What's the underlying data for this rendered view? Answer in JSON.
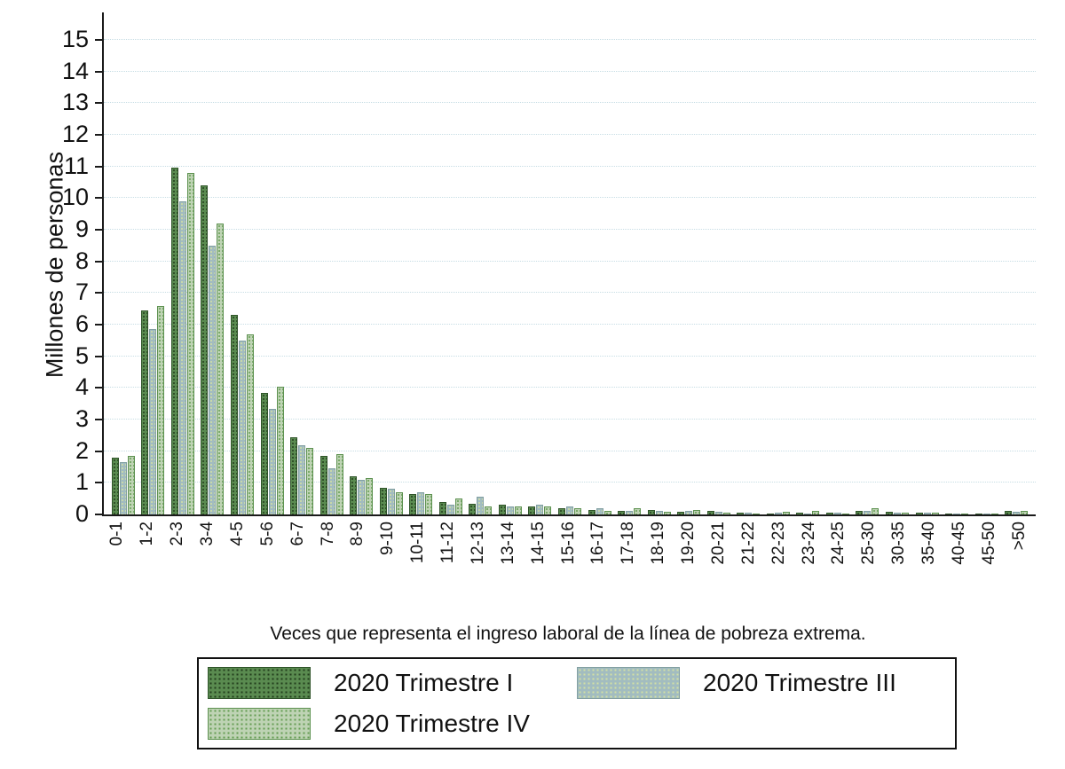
{
  "chart": {
    "y_axis_title": "Millones de personas",
    "x_axis_title": "Veces que representa el ingreso laboral de la línea de pobreza extrema."
  },
  "legend": {
    "items": [
      {
        "label": "2020 Trimestre I"
      },
      {
        "label": "2020 Trimestre III"
      },
      {
        "label": "2020 Trimestre IV"
      }
    ]
  },
  "chart_data": {
    "type": "bar",
    "title": "",
    "xlabel": "Veces que representa el ingreso laboral de la línea de pobreza extrema.",
    "ylabel": "Millones de personas",
    "ylim": [
      0,
      15
    ],
    "y_tick_step": 1,
    "grid": true,
    "legend_position": "bottom",
    "categories": [
      "0-1",
      "1-2",
      "2-3",
      "3-4",
      "4-5",
      "5-6",
      "6-7",
      "7-8",
      "8-9",
      "9-10",
      "10-11",
      "11-12",
      "12-13",
      "13-14",
      "14-15",
      "15-16",
      "16-17",
      "17-18",
      "18-19",
      "19-20",
      "20-21",
      "21-22",
      "22-23",
      "23-24",
      "24-25",
      "25-30",
      "30-35",
      "35-40",
      "40-45",
      "45-50",
      ">50"
    ],
    "series": [
      {
        "name": "2020 Trimestre I",
        "color": "#5a8b50",
        "dot_color": "#223d1c",
        "border_color": "#2f5429",
        "values": [
          1.8,
          6.45,
          10.95,
          10.4,
          6.3,
          3.85,
          2.45,
          1.85,
          1.2,
          0.85,
          0.65,
          0.4,
          0.35,
          0.3,
          0.25,
          0.2,
          0.15,
          0.1,
          0.15,
          0.08,
          0.1,
          0.06,
          0.04,
          0.05,
          0.06,
          0.12,
          0.08,
          0.06,
          0.04,
          0.03,
          0.1
        ]
      },
      {
        "name": "2020 Trimestre III",
        "color": "#a2bcc0",
        "dot_color": "#d3e0a4",
        "border_color": "#83a0a2",
        "values": [
          1.65,
          5.85,
          9.9,
          8.5,
          5.5,
          3.35,
          2.2,
          1.45,
          1.1,
          0.8,
          0.7,
          0.3,
          0.55,
          0.25,
          0.3,
          0.25,
          0.2,
          0.1,
          0.1,
          0.1,
          0.08,
          0.05,
          0.05,
          0.04,
          0.05,
          0.12,
          0.07,
          0.05,
          0.04,
          0.02,
          0.08
        ]
      },
      {
        "name": "2020 Trimestre IV",
        "color": "#bed3b4",
        "dot_color": "#649c52",
        "border_color": "#5d9150",
        "values": [
          1.85,
          6.6,
          10.8,
          9.2,
          5.7,
          4.05,
          2.1,
          1.9,
          1.15,
          0.7,
          0.65,
          0.5,
          0.25,
          0.25,
          0.25,
          0.2,
          0.1,
          0.2,
          0.08,
          0.15,
          0.06,
          0.04,
          0.08,
          0.1,
          0.04,
          0.2,
          0.06,
          0.05,
          0.03,
          0.02,
          0.1
        ]
      }
    ]
  },
  "colors": {
    "gridline": "#c7dde4",
    "axis": "#1a1a1a",
    "background": "#ffffff"
  }
}
